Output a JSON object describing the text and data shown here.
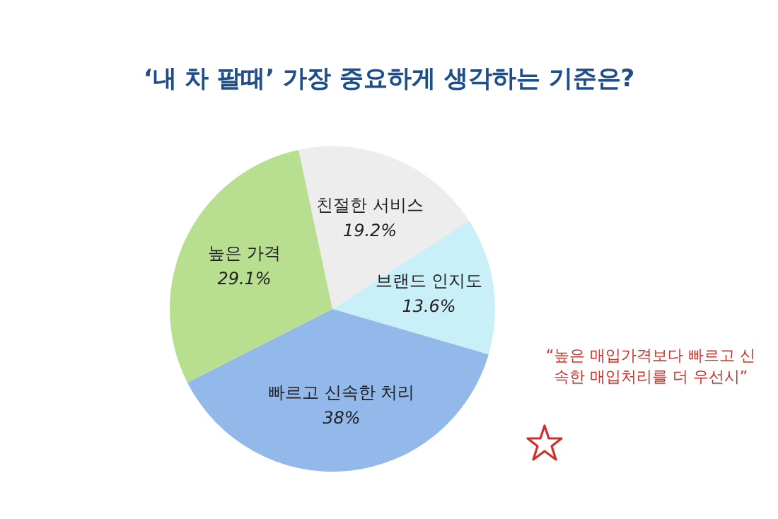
{
  "chart_data": {
    "type": "pie",
    "title": "‘내 차 팔때’ 가장 중요하게 생각하는 기준은?",
    "categories": [
      "친절한 서비스",
      "브랜드 인지도",
      "빠르고 신속한 처리",
      "높은 가격"
    ],
    "values": [
      19.2,
      13.6,
      38,
      29.1
    ],
    "value_labels": [
      "19.2%",
      "13.6%",
      "38%",
      "29.1%"
    ],
    "colors": [
      "#ededed",
      "#c9eff8",
      "#93b8ea",
      "#b8df8f"
    ],
    "legend": false,
    "annotations": [
      "“높은 매입가격보다 빠르고 신속한 매입처리를 더 우선시”"
    ]
  }
}
